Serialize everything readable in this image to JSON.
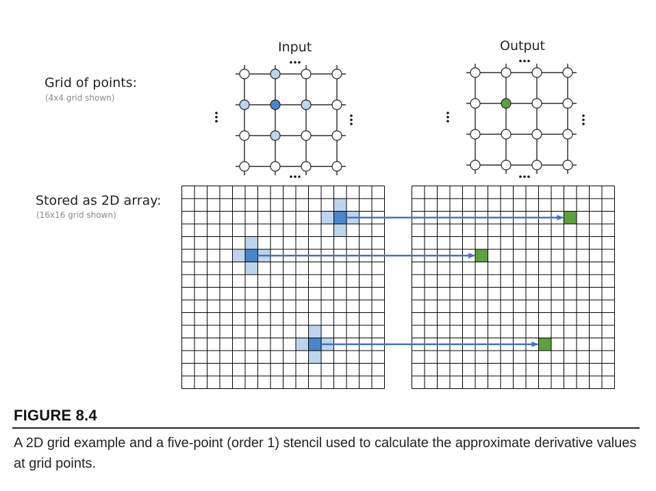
{
  "labels": {
    "grid_title": "Grid of points:",
    "grid_sub": "(4x4 grid shown)",
    "array_title": "Stored as 2D array:",
    "array_sub": "(16x16 grid shown)",
    "input_title": "Input",
    "output_title": "Output",
    "ellipsis": "..."
  },
  "figure": {
    "label": "FIGURE 8.4",
    "caption": "A 2D grid example and a five-point (order 1) stencil used to calculate the approximate derivative values at grid points."
  },
  "colors": {
    "center": "#4a86c8",
    "neighbor": "#bdd4ec",
    "output": "#5fa043",
    "arrow": "#4472c4",
    "line": "#000000"
  },
  "input_grid": {
    "rows": 4,
    "cols": 4,
    "center": [
      1,
      1
    ],
    "neighbors": [
      [
        0,
        1
      ],
      [
        2,
        1
      ],
      [
        1,
        0
      ],
      [
        1,
        2
      ]
    ]
  },
  "output_grid": {
    "rows": 4,
    "cols": 4,
    "center": [
      1,
      1
    ]
  },
  "arrays": {
    "rows": 16,
    "cols": 16
  },
  "stencils": [
    {
      "in_center": [
        2,
        12
      ],
      "out_cell": [
        2,
        12
      ]
    },
    {
      "in_center": [
        5,
        5
      ],
      "out_cell": [
        5,
        5
      ]
    },
    {
      "in_center": [
        12,
        10
      ],
      "out_cell": [
        12,
        10
      ]
    }
  ]
}
